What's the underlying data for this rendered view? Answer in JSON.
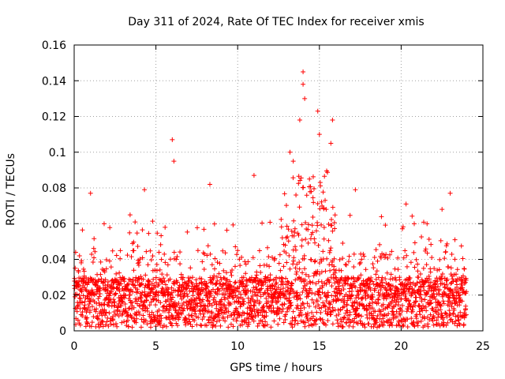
{
  "chart_data": {
    "type": "scatter",
    "title": "Day 311 of 2024, Rate Of TEC Index for receiver xmis",
    "xlabel": "GPS time / hours",
    "ylabel": "ROTI / TECUs",
    "xlim": [
      0,
      25
    ],
    "ylim": [
      0,
      0.16
    ],
    "xticks": [
      0,
      5,
      10,
      15,
      20,
      25
    ],
    "xtick_labels": [
      "0",
      "5",
      "10",
      "15",
      "20",
      "25"
    ],
    "yticks": [
      0,
      0.02,
      0.04,
      0.06,
      0.08,
      0.1,
      0.12,
      0.14,
      0.16
    ],
    "ytick_labels": [
      "0",
      "0.02",
      "0.04",
      "0.06",
      "0.08",
      "0.1",
      "0.12",
      "0.14",
      "0.16"
    ],
    "grid": true,
    "legend": "none",
    "marker": "plus",
    "color": "#ff0000",
    "series": [
      {
        "x_range_hours": [
          0,
          24
        ],
        "baseline_range": [
          0.002,
          0.03
        ],
        "notable_points": [
          {
            "x": 1.0,
            "y": 0.077
          },
          {
            "x": 4.3,
            "y": 0.079
          },
          {
            "x": 6.0,
            "y": 0.107
          },
          {
            "x": 6.1,
            "y": 0.095
          },
          {
            "x": 8.3,
            "y": 0.082
          },
          {
            "x": 11.0,
            "y": 0.087
          },
          {
            "x": 14.0,
            "y": 0.145
          },
          {
            "x": 14.0,
            "y": 0.138
          },
          {
            "x": 14.1,
            "y": 0.13
          },
          {
            "x": 13.8,
            "y": 0.118
          },
          {
            "x": 14.9,
            "y": 0.123
          },
          {
            "x": 15.8,
            "y": 0.118
          },
          {
            "x": 15.0,
            "y": 0.11
          },
          {
            "x": 15.7,
            "y": 0.105
          },
          {
            "x": 13.2,
            "y": 0.1
          },
          {
            "x": 13.4,
            "y": 0.095
          },
          {
            "x": 17.2,
            "y": 0.079
          },
          {
            "x": 20.3,
            "y": 0.071
          },
          {
            "x": 22.5,
            "y": 0.068
          },
          {
            "x": 23.0,
            "y": 0.077
          }
        ]
      }
    ]
  }
}
